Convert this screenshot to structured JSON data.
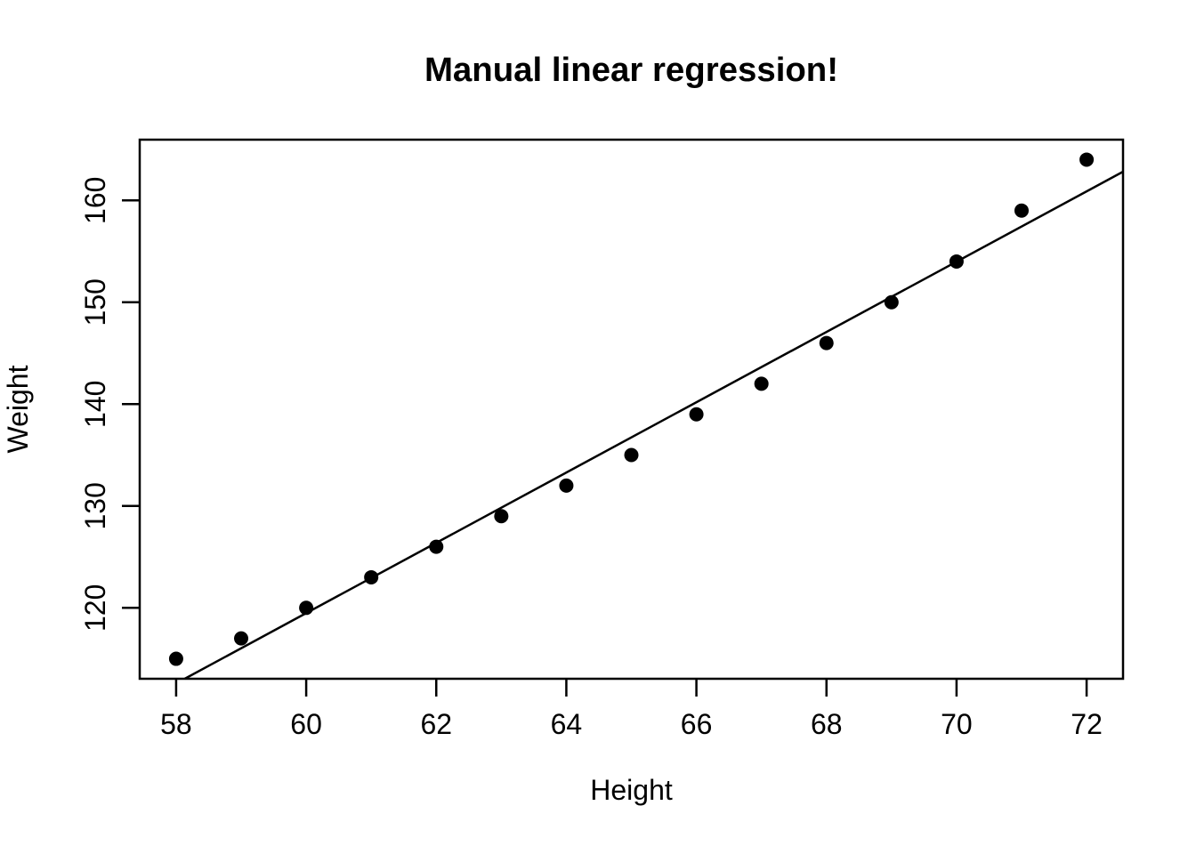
{
  "page": {
    "background_color": "#ffffff",
    "foreground_color": "#000000"
  },
  "chart_data": {
    "type": "scatter",
    "title": "Manual linear regression!",
    "xlabel": "Height",
    "ylabel": "Weight",
    "xlim": [
      57.44,
      72.56
    ],
    "ylim": [
      113.04,
      165.96
    ],
    "x_ticks": [
      58,
      60,
      62,
      64,
      66,
      68,
      70,
      72
    ],
    "y_ticks": [
      120,
      130,
      140,
      150,
      160
    ],
    "grid": false,
    "legend": null,
    "points": {
      "x": [
        58,
        59,
        60,
        61,
        62,
        63,
        64,
        65,
        66,
        67,
        68,
        69,
        70,
        71,
        72
      ],
      "y": [
        115,
        117,
        120,
        123,
        126,
        129,
        132,
        135,
        139,
        142,
        146,
        150,
        154,
        159,
        164
      ]
    },
    "regression_line": {
      "slope": 3.45,
      "intercept": -87.5167
    },
    "style": {
      "point_color": "#000000",
      "line_color": "#000000",
      "box_color": "#000000"
    }
  }
}
